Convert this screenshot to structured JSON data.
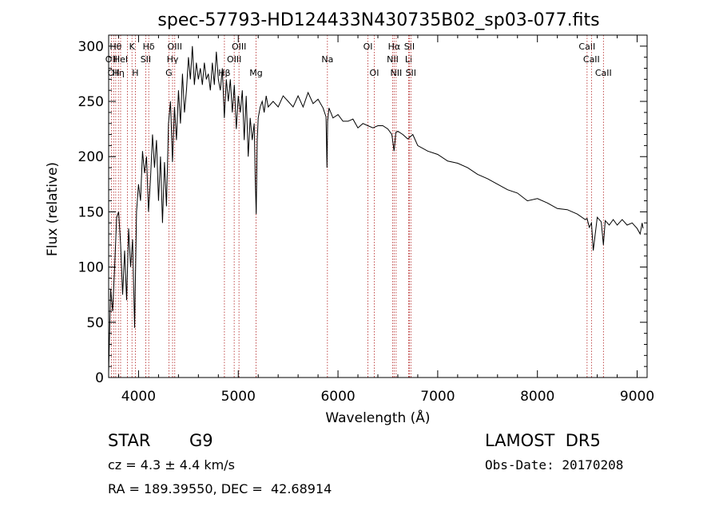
{
  "chart_data": {
    "type": "line",
    "title": "spec-57793-HD124433N430735B02_sp03-077.fits",
    "xlabel": "Wavelength (Å)",
    "ylabel": "Flux (relative)",
    "xlim": [
      3700,
      9100
    ],
    "ylim": [
      0,
      310
    ],
    "x_ticks": [
      4000,
      5000,
      6000,
      7000,
      8000,
      9000
    ],
    "y_ticks": [
      0,
      50,
      100,
      150,
      200,
      250,
      300
    ],
    "grid": false,
    "line_color": "#000000",
    "marker_color": "#b22222",
    "series": [
      {
        "x": [
          3700,
          3720,
          3740,
          3760,
          3780,
          3800,
          3820,
          3840,
          3860,
          3880,
          3900,
          3920,
          3940,
          3960,
          3980,
          4000,
          4020,
          4040,
          4060,
          4080,
          4100,
          4120,
          4140,
          4160,
          4180,
          4200,
          4220,
          4240,
          4260,
          4280,
          4300,
          4320,
          4340,
          4360,
          4380,
          4400,
          4420,
          4440,
          4460,
          4480,
          4500,
          4520,
          4540,
          4560,
          4580,
          4600,
          4620,
          4640,
          4660,
          4680,
          4700,
          4720,
          4740,
          4760,
          4780,
          4800,
          4820,
          4840,
          4860,
          4880,
          4900,
          4920,
          4940,
          4960,
          4980,
          5000,
          5020,
          5040,
          5060,
          5080,
          5100,
          5120,
          5140,
          5160,
          5170,
          5180,
          5190,
          5200,
          5220,
          5240,
          5260,
          5280,
          5300,
          5350,
          5400,
          5450,
          5500,
          5550,
          5600,
          5650,
          5700,
          5750,
          5800,
          5850,
          5880,
          5890,
          5896,
          5910,
          5950,
          6000,
          6050,
          6100,
          6150,
          6200,
          6250,
          6300,
          6350,
          6400,
          6450,
          6500,
          6540,
          6563,
          6580,
          6600,
          6650,
          6700,
          6750,
          6800,
          6900,
          7000,
          7100,
          7200,
          7300,
          7400,
          7500,
          7600,
          7700,
          7800,
          7900,
          8000,
          8100,
          8200,
          8300,
          8400,
          8480,
          8498,
          8520,
          8542,
          8560,
          8600,
          8640,
          8662,
          8680,
          8720,
          8760,
          8800,
          8850,
          8900,
          8950,
          9000,
          9030,
          9050,
          9060
        ],
        "y": [
          5,
          80,
          60,
          100,
          145,
          150,
          120,
          75,
          115,
          70,
          135,
          100,
          125,
          45,
          150,
          175,
          160,
          205,
          185,
          200,
          150,
          180,
          220,
          190,
          215,
          160,
          200,
          140,
          195,
          155,
          230,
          250,
          195,
          245,
          215,
          260,
          230,
          275,
          240,
          260,
          290,
          270,
          300,
          265,
          285,
          270,
          280,
          265,
          285,
          270,
          275,
          260,
          285,
          265,
          295,
          270,
          260,
          280,
          235,
          270,
          250,
          270,
          240,
          265,
          225,
          255,
          240,
          260,
          215,
          255,
          200,
          235,
          215,
          230,
          180,
          148,
          215,
          235,
          245,
          250,
          240,
          255,
          245,
          250,
          245,
          255,
          250,
          245,
          255,
          245,
          258,
          248,
          252,
          244,
          236,
          190,
          232,
          244,
          235,
          238,
          232,
          232,
          234,
          226,
          230,
          228,
          226,
          228,
          228,
          225,
          220,
          205,
          222,
          223,
          220,
          216,
          220,
          210,
          205,
          202,
          196,
          194,
          190,
          184,
          180,
          175,
          170,
          167,
          160,
          162,
          158,
          153,
          152,
          148,
          143,
          144,
          136,
          140,
          115,
          145,
          141,
          120,
          142,
          138,
          143,
          138,
          143,
          138,
          140,
          135,
          130,
          140,
          135
        ]
      }
    ],
    "line_markers": [
      {
        "wavelength": 3727,
        "label": "OII",
        "row": 2
      },
      {
        "wavelength": 3750,
        "label": "OII",
        "row": 3
      },
      {
        "wavelength": 3771,
        "label": "Hθ",
        "row": 1
      },
      {
        "wavelength": 3798,
        "label": "Hη",
        "row": 3
      },
      {
        "wavelength": 3820,
        "label": "HeI",
        "row": 2
      },
      {
        "wavelength": 3889,
        "label": "",
        "row": 0
      },
      {
        "wavelength": 3934,
        "label": "K",
        "row": 1
      },
      {
        "wavelength": 3968,
        "label": "H",
        "row": 3
      },
      {
        "wavelength": 4072,
        "label": "SII",
        "row": 2
      },
      {
        "wavelength": 4102,
        "label": "Hδ",
        "row": 1
      },
      {
        "wavelength": 4304,
        "label": "G",
        "row": 3
      },
      {
        "wavelength": 4341,
        "label": "Hγ",
        "row": 2
      },
      {
        "wavelength": 4363,
        "label": "OIII",
        "row": 1
      },
      {
        "wavelength": 4861,
        "label": "Hβ",
        "row": 3
      },
      {
        "wavelength": 4959,
        "label": "OIII",
        "row": 2
      },
      {
        "wavelength": 5007,
        "label": "OIII",
        "row": 1
      },
      {
        "wavelength": 5178,
        "label": "Mg",
        "row": 3
      },
      {
        "wavelength": 5894,
        "label": "Na",
        "row": 2
      },
      {
        "wavelength": 6300,
        "label": "OI",
        "row": 1
      },
      {
        "wavelength": 6364,
        "label": "OI",
        "row": 3
      },
      {
        "wavelength": 6548,
        "label": "NII",
        "row": 2
      },
      {
        "wavelength": 6563,
        "label": "Hα",
        "row": 1
      },
      {
        "wavelength": 6583,
        "label": "NII",
        "row": 3
      },
      {
        "wavelength": 6708,
        "label": "Li",
        "row": 2
      },
      {
        "wavelength": 6716,
        "label": "SII",
        "row": 1
      },
      {
        "wavelength": 6731,
        "label": "SII",
        "row": 3
      },
      {
        "wavelength": 8498,
        "label": "CaII",
        "row": 1
      },
      {
        "wavelength": 8542,
        "label": "CaII",
        "row": 2
      },
      {
        "wavelength": 8662,
        "label": "CaII",
        "row": 3
      }
    ]
  },
  "info": {
    "object_class": "STAR",
    "subclass": "G9",
    "survey": "LAMOST  DR5",
    "cz": "cz = 4.3 ± 4.4 km/s",
    "obs_date": "Obs-Date: 20170208",
    "coords": "RA = 189.39550, DEC =  42.68914"
  }
}
